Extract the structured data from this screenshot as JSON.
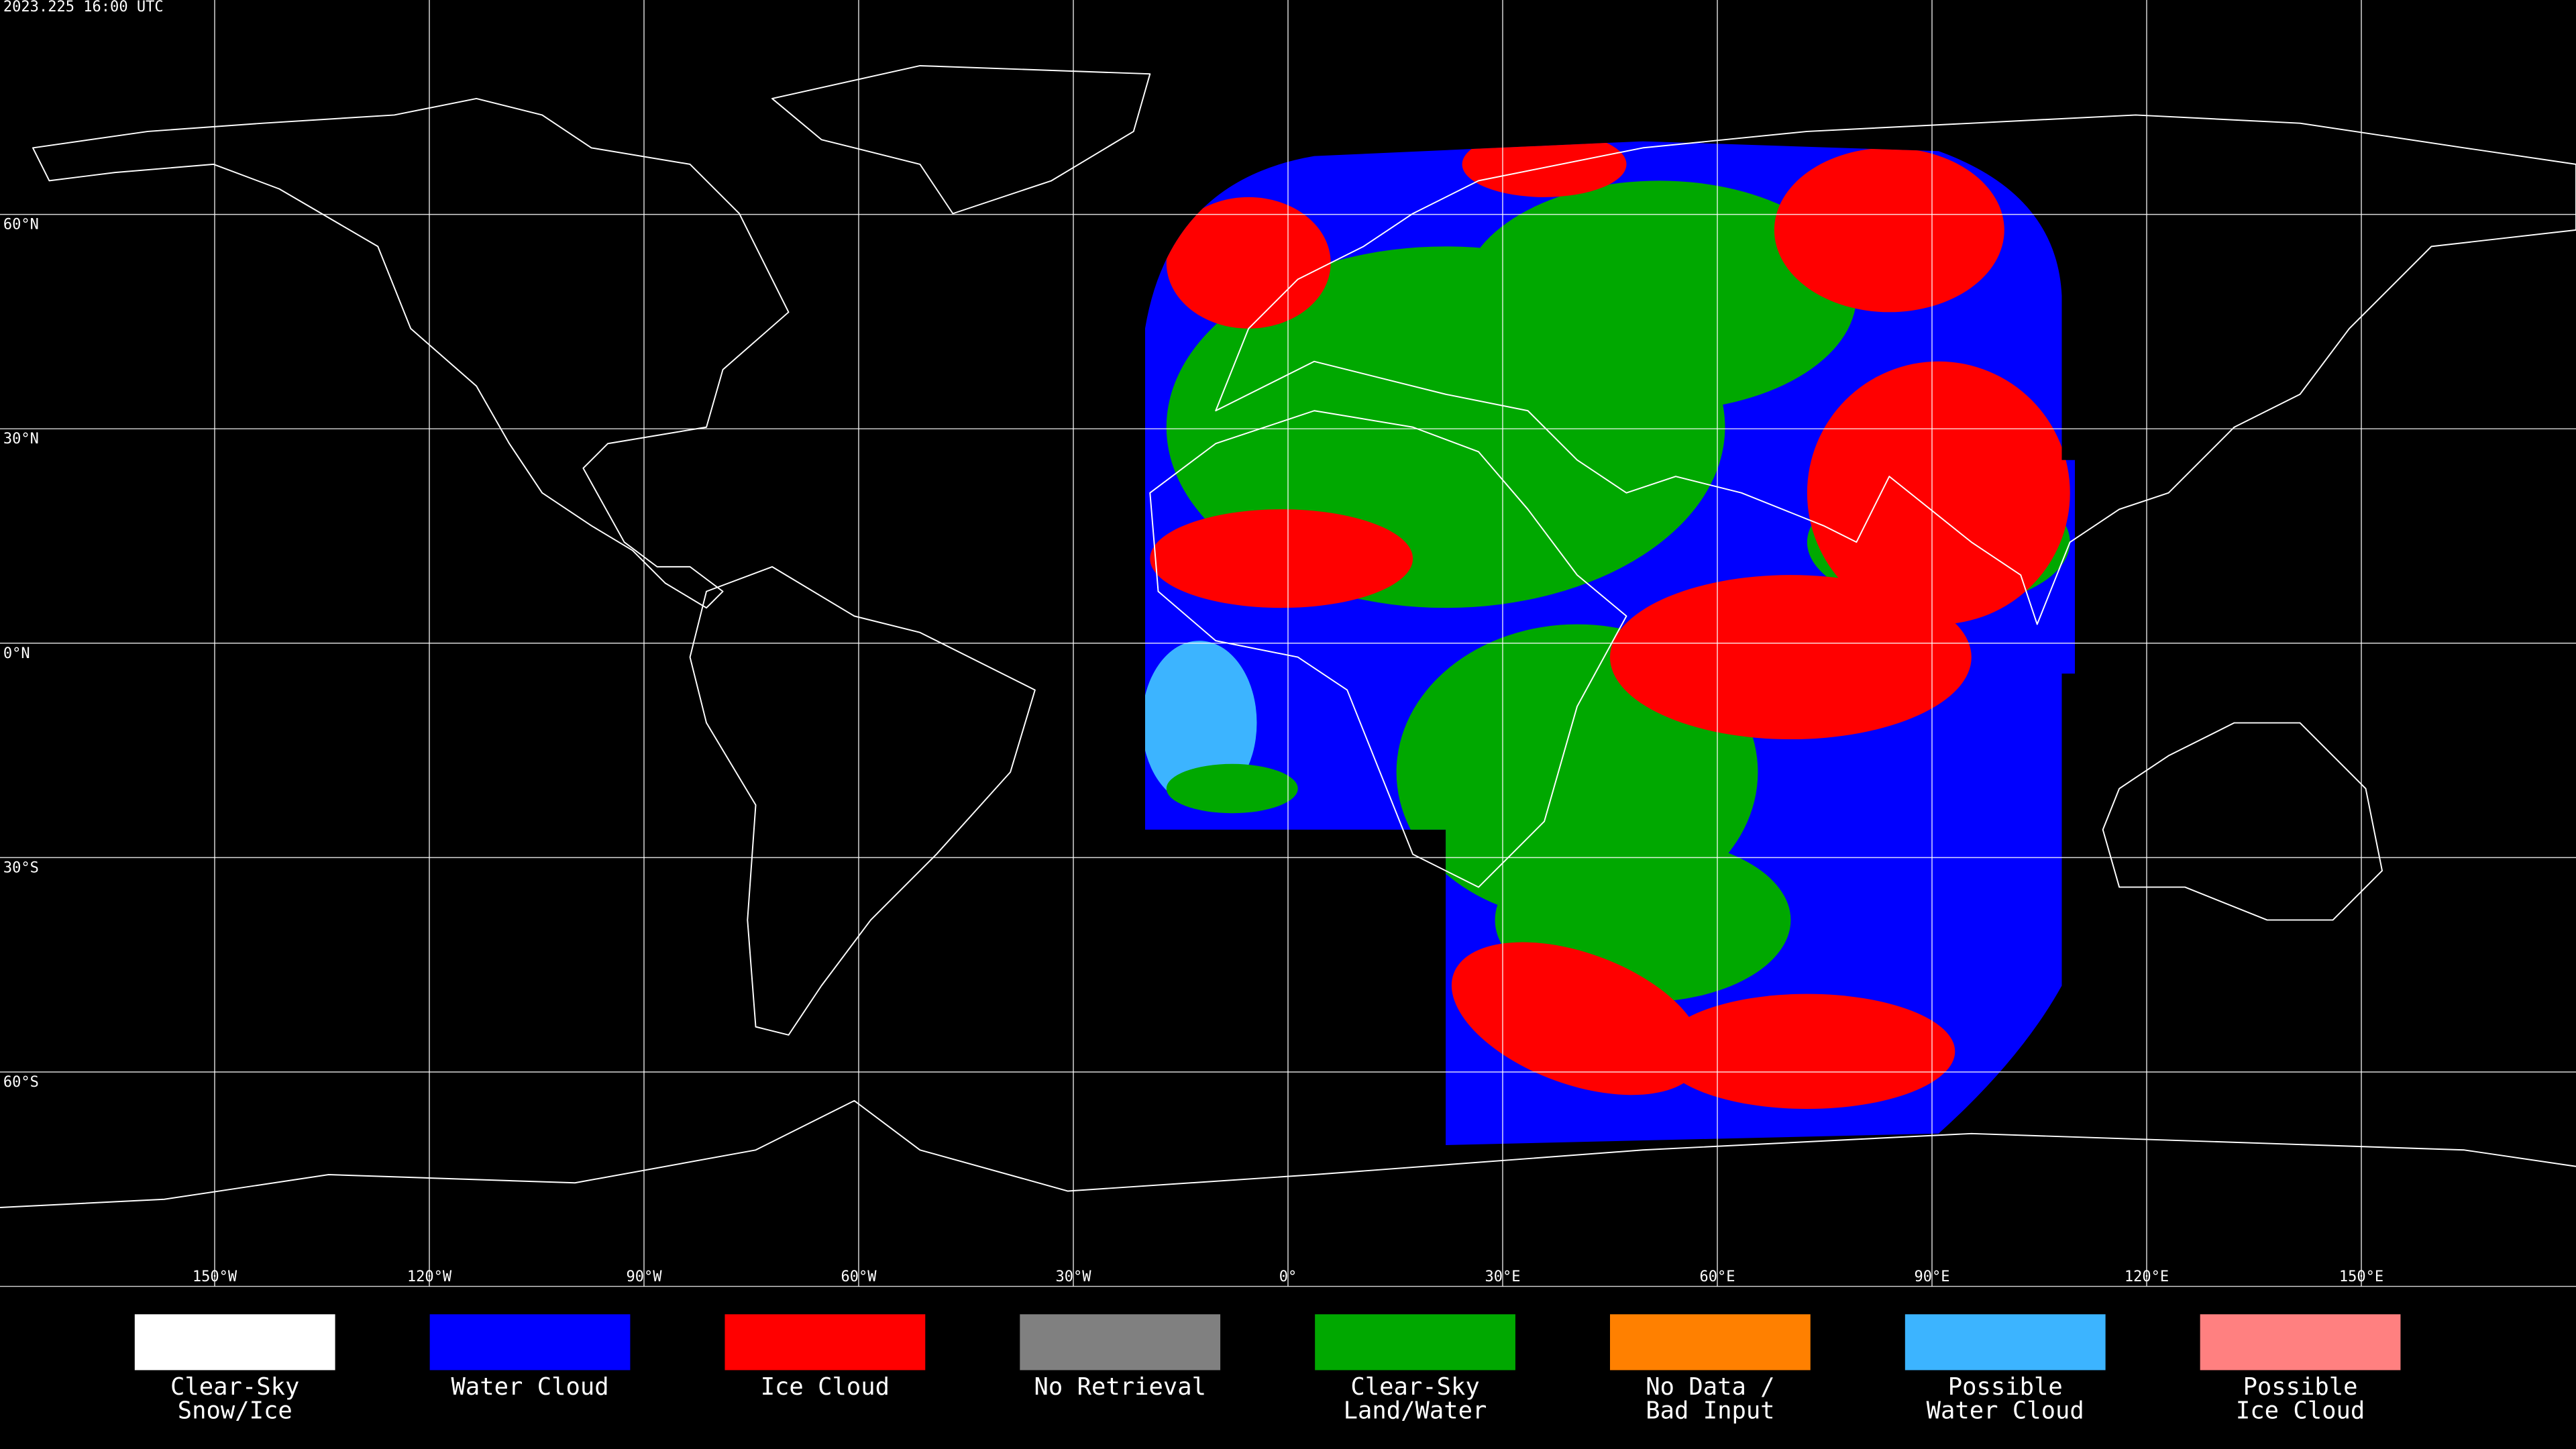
{
  "header": {
    "timestamp": "2023.225 16:00 UTC"
  },
  "map": {
    "lat_labels": [
      "60°N",
      "30°N",
      "0°N",
      "30°S",
      "60°S"
    ],
    "lon_labels": [
      "150°W",
      "120°W",
      "90°W",
      "60°W",
      "30°W",
      "0°",
      "30°E",
      "60°E",
      "90°E",
      "120°E",
      "150°E"
    ]
  },
  "legend": {
    "items": [
      {
        "lines": [
          "Clear-Sky",
          "Snow/Ice"
        ],
        "color": "#ffffff"
      },
      {
        "lines": [
          "Water Cloud"
        ],
        "color": "#0000ff"
      },
      {
        "lines": [
          "Ice Cloud"
        ],
        "color": "#ff0000"
      },
      {
        "lines": [
          "No Retrieval"
        ],
        "color": "#808080"
      },
      {
        "lines": [
          "Clear-Sky",
          "Land/Water"
        ],
        "color": "#00a800"
      },
      {
        "lines": [
          "No Data /",
          "Bad Input"
        ],
        "color": "#ff8000"
      },
      {
        "lines": [
          "Possible",
          "Water Cloud"
        ],
        "color": "#3cb4ff"
      },
      {
        "lines": [
          "Possible",
          "Ice Cloud"
        ],
        "color": "#ff8080"
      }
    ]
  }
}
